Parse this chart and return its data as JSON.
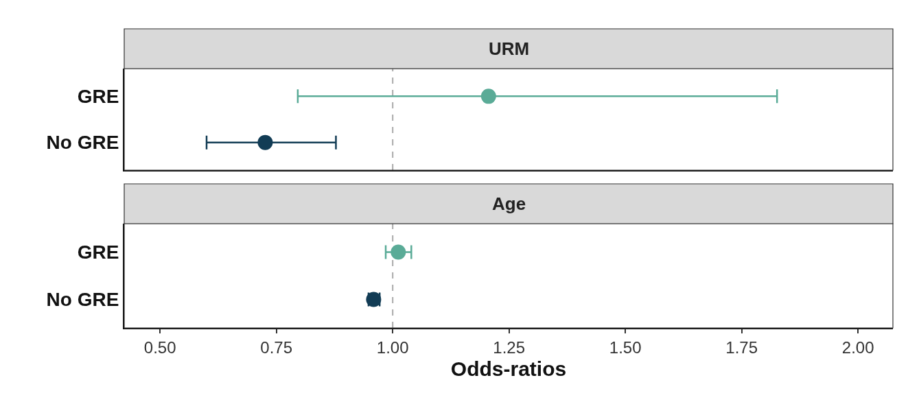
{
  "chart_data": [
    {
      "type": "scatter",
      "title": "URM",
      "orientation": "horizontal",
      "categories": [
        "GRE",
        "No GRE"
      ],
      "values": [
        1.206,
        0.726
      ],
      "errors": [
        [
          0.796,
          1.826
        ],
        [
          0.6,
          0.878
        ]
      ],
      "colors": [
        "#5aab97",
        "#123c55"
      ],
      "xlim": [
        0.423,
        2.075
      ],
      "ref_lines": [
        {
          "axis": "x",
          "value": 1,
          "color": "#aaaaaa",
          "line_style": "dashed"
        }
      ],
      "marker": "circle",
      "grid": false,
      "legend": false,
      "tick_labels": "y"
    },
    {
      "type": "scatter",
      "title": "Age",
      "xlabel": "Odds-ratios",
      "orientation": "horizontal",
      "categories": [
        "GRE",
        "No GRE"
      ],
      "values": [
        1.012,
        0.959
      ],
      "errors": [
        [
          0.985,
          1.04
        ],
        [
          0.948,
          0.972
        ]
      ],
      "colors": [
        "#5aab97",
        "#123c55"
      ],
      "xlim": [
        0.423,
        2.075
      ],
      "xticks": [
        {
          "value": 0.5,
          "label": "0.50"
        },
        {
          "value": 0.75,
          "label": "0.75"
        },
        {
          "value": 1,
          "label": "1.00"
        },
        {
          "value": 1.25,
          "label": "1.25"
        },
        {
          "value": 1.5,
          "label": "1.50"
        },
        {
          "value": 1.75,
          "label": "1.75"
        },
        {
          "value": 2,
          "label": "2.00"
        }
      ],
      "ref_lines": [
        {
          "axis": "x",
          "value": 1,
          "color": "#aaaaaa",
          "line_style": "dashed"
        }
      ],
      "marker": "circle",
      "grid": false,
      "legend": false
    }
  ]
}
